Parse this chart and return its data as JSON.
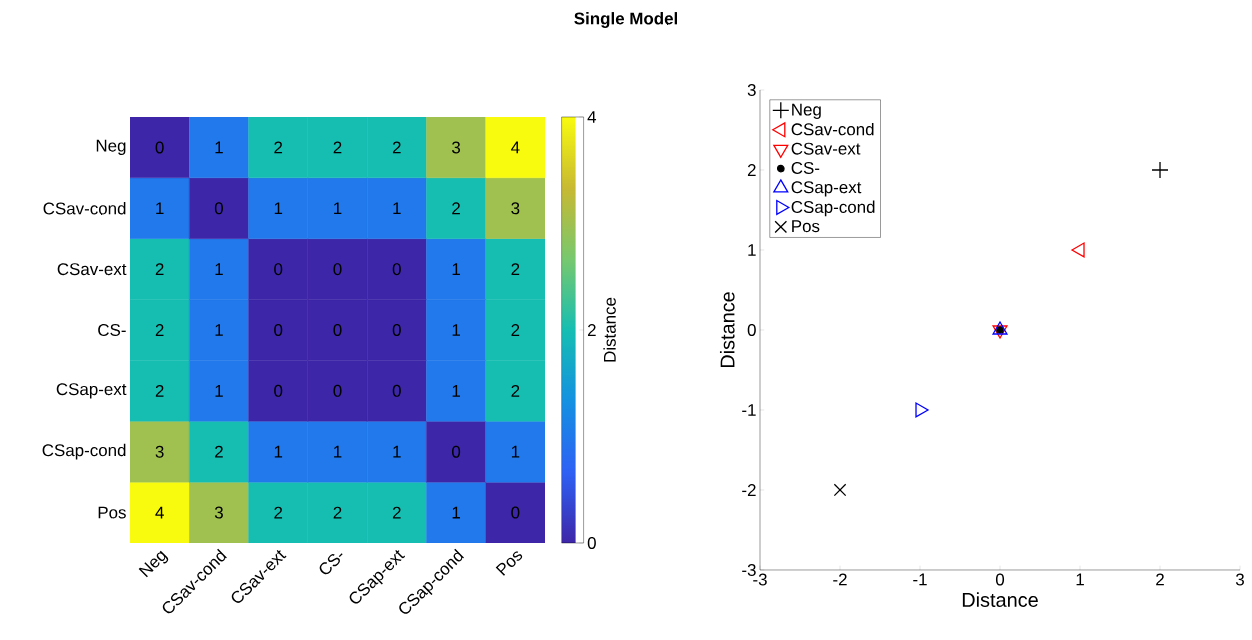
{
  "chart_data": [
    {
      "type": "other",
      "title": "Single Model"
    },
    {
      "type": "heatmap",
      "categories": [
        "Neg",
        "CSav-cond",
        "CSav-ext",
        "CS-",
        "CSap-ext",
        "CSap-cond",
        "Pos"
      ],
      "y_categories": [
        "Neg",
        "CSav-cond",
        "CSav-ext",
        "CS-",
        "CSap-ext",
        "CSap-cond",
        "Pos"
      ],
      "cells": [
        [
          0,
          1,
          2,
          2,
          2,
          3,
          4
        ],
        [
          1,
          0,
          1,
          1,
          1,
          2,
          3
        ],
        [
          2,
          1,
          0,
          0,
          0,
          1,
          2
        ],
        [
          2,
          1,
          0,
          0,
          0,
          1,
          2
        ],
        [
          2,
          1,
          0,
          0,
          0,
          1,
          2
        ],
        [
          3,
          2,
          1,
          1,
          1,
          0,
          1
        ],
        [
          4,
          3,
          2,
          2,
          2,
          1,
          0
        ]
      ],
      "data_labels": true,
      "clim": [
        0,
        4
      ],
      "cticks": [
        0,
        2,
        4
      ],
      "clabel": "Distance"
    },
    {
      "type": "scatter",
      "xlabel": "Distance",
      "ylabel": "Distance",
      "xlim": [
        -3,
        3
      ],
      "ylim": [
        -3,
        3
      ],
      "xticks": [
        -3,
        -2,
        -1,
        0,
        1,
        2,
        3
      ],
      "yticks": [
        -3,
        -2,
        -1,
        0,
        1,
        2,
        3
      ],
      "legend": "top left",
      "series": [
        {
          "name": "Neg",
          "color": "#000000",
          "marker": "plus",
          "x": [
            2
          ],
          "values": [
            2
          ]
        },
        {
          "name": "CSav-cond",
          "color": "#ff0000",
          "marker": "triangle-left",
          "x": [
            1
          ],
          "values": [
            1
          ]
        },
        {
          "name": "CSav-ext",
          "color": "#ff0000",
          "marker": "triangle-down",
          "x": [
            0
          ],
          "values": [
            0
          ]
        },
        {
          "name": "CS-",
          "color": "#000000",
          "marker": "point",
          "x": [
            0
          ],
          "values": [
            0
          ]
        },
        {
          "name": "CSap-ext",
          "color": "#0000ff",
          "marker": "triangle",
          "x": [
            0
          ],
          "values": [
            0
          ]
        },
        {
          "name": "CSap-cond",
          "color": "#0000ff",
          "marker": "triangle-right",
          "x": [
            -1
          ],
          "values": [
            -1
          ]
        },
        {
          "name": "Pos",
          "color": "#000000",
          "marker": "cross",
          "x": [
            -2
          ],
          "values": [
            -2
          ]
        }
      ]
    }
  ]
}
